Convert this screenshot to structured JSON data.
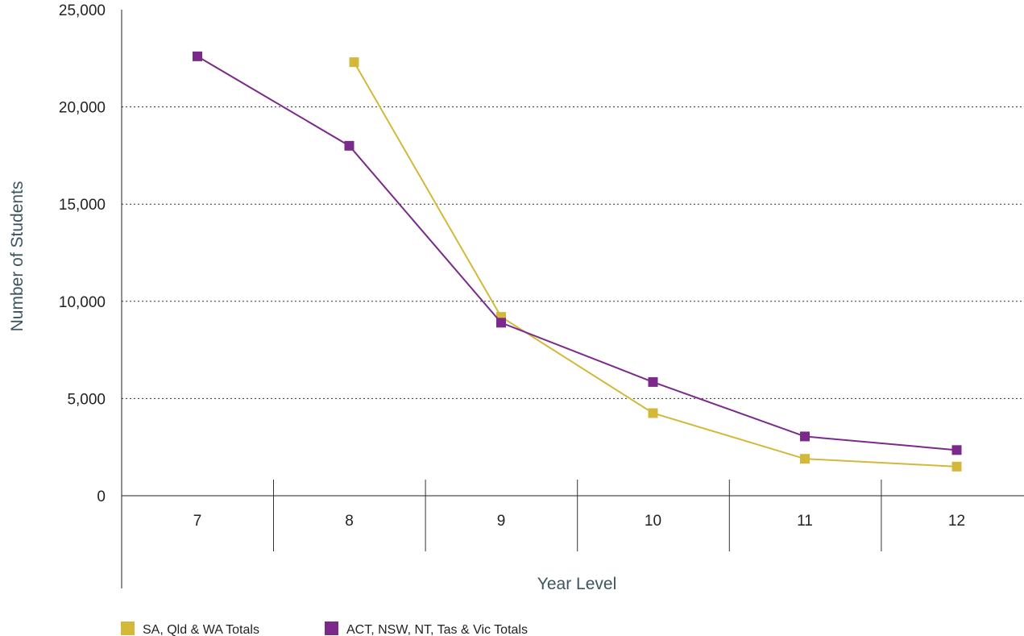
{
  "chart_data": {
    "type": "line",
    "xlabel": "Year Level",
    "ylabel": "Number of Students",
    "categories": [
      "7",
      "8",
      "9",
      "10",
      "11",
      "12"
    ],
    "ylim": [
      0,
      25000
    ],
    "yticks": [
      0,
      5000,
      10000,
      15000,
      20000,
      25000
    ],
    "ytick_labels": [
      "0",
      "5,000",
      "10,000",
      "15,000",
      "20,000",
      "25,000"
    ],
    "grid": "horizontal dotted",
    "legend_position": "bottom-left",
    "series": [
      {
        "name": "SA, Qld & WA Totals",
        "color": "#d4b83a",
        "values": [
          null,
          22300,
          9200,
          4250,
          1900,
          1500
        ]
      },
      {
        "name": "ACT, NSW, NT, Tas & Vic Totals",
        "color": "#7b2a8c",
        "values": [
          22600,
          18000,
          8900,
          5850,
          3050,
          2350
        ]
      }
    ]
  }
}
